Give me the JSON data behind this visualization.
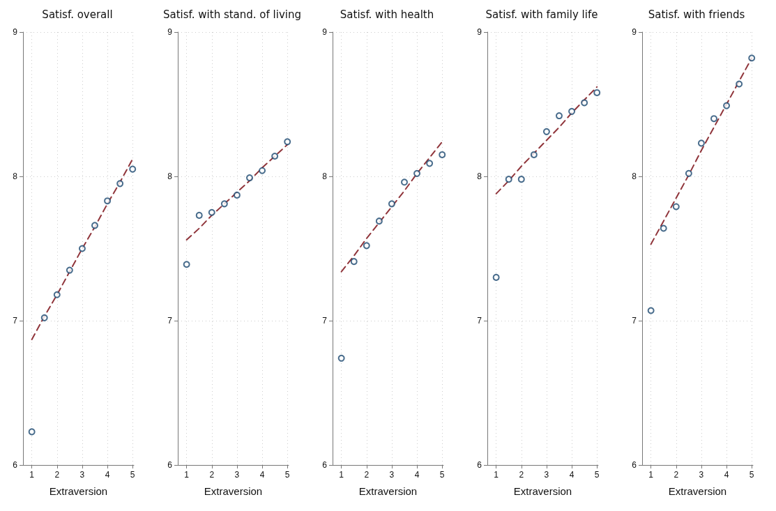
{
  "chart_data": [
    {
      "type": "scatter",
      "title": "Satisf. overall",
      "xlabel": "Extraversion",
      "x": [
        1,
        1.5,
        2,
        2.5,
        3,
        3.5,
        4,
        4.5,
        5
      ],
      "xlim": [
        0.65,
        5.05
      ],
      "xticks": [
        1,
        2,
        3,
        4,
        5
      ],
      "ylim": [
        6,
        9
      ],
      "yticks": [
        6,
        7,
        8,
        9
      ],
      "grid": true,
      "series": [
        {
          "color": "#1a476f",
          "marker": "circle",
          "values": [
            6.23,
            7.02,
            7.18,
            7.35,
            7.5,
            7.66,
            7.83,
            7.95,
            8.05
          ]
        },
        {
          "type": "line",
          "color": "#90353b",
          "line_style": "dashed",
          "marker": "none",
          "values": [
            6.87,
            7.03,
            7.18,
            7.34,
            7.5,
            7.65,
            7.81,
            7.96,
            8.12
          ]
        }
      ]
    },
    {
      "type": "scatter",
      "title": "Satisf. with stand. of living",
      "xlabel": "Extraversion",
      "x": [
        1,
        1.5,
        2,
        2.5,
        3,
        3.5,
        4,
        4.5,
        5
      ],
      "xlim": [
        0.65,
        5.05
      ],
      "xticks": [
        1,
        2,
        3,
        4,
        5
      ],
      "ylim": [
        6,
        9
      ],
      "yticks": [
        6,
        7,
        8,
        9
      ],
      "grid": true,
      "series": [
        {
          "color": "#1a476f",
          "marker": "circle",
          "values": [
            7.39,
            7.73,
            7.75,
            7.81,
            7.87,
            7.99,
            8.04,
            8.14,
            8.24
          ]
        },
        {
          "type": "line",
          "color": "#90353b",
          "line_style": "dashed",
          "marker": "none",
          "values": [
            7.56,
            7.64,
            7.73,
            7.81,
            7.89,
            7.97,
            8.06,
            8.14,
            8.22
          ]
        }
      ]
    },
    {
      "type": "scatter",
      "title": "Satisf. with health",
      "xlabel": "Extraversion",
      "x": [
        1,
        1.5,
        2,
        2.5,
        3,
        3.5,
        4,
        4.5,
        5
      ],
      "xlim": [
        0.65,
        5.05
      ],
      "xticks": [
        1,
        2,
        3,
        4,
        5
      ],
      "ylim": [
        6,
        9
      ],
      "yticks": [
        6,
        7,
        8,
        9
      ],
      "grid": true,
      "series": [
        {
          "color": "#1a476f",
          "marker": "circle",
          "values": [
            6.74,
            7.41,
            7.52,
            7.69,
            7.81,
            7.96,
            8.02,
            8.09,
            8.15
          ]
        },
        {
          "type": "line",
          "color": "#90353b",
          "line_style": "dashed",
          "marker": "none",
          "values": [
            7.34,
            7.45,
            7.57,
            7.68,
            7.79,
            7.9,
            8.02,
            8.13,
            8.24
          ]
        }
      ]
    },
    {
      "type": "scatter",
      "title": "Satisf. with family life",
      "xlabel": "Extraversion",
      "x": [
        1,
        1.5,
        2,
        2.5,
        3,
        3.5,
        4,
        4.5,
        5
      ],
      "xlim": [
        0.65,
        5.05
      ],
      "xticks": [
        1,
        2,
        3,
        4,
        5
      ],
      "ylim": [
        6,
        9
      ],
      "yticks": [
        6,
        7,
        8,
        9
      ],
      "grid": true,
      "series": [
        {
          "color": "#1a476f",
          "marker": "circle",
          "values": [
            7.3,
            7.98,
            7.98,
            8.15,
            8.31,
            8.42,
            8.45,
            8.51,
            8.58
          ]
        },
        {
          "type": "line",
          "color": "#90353b",
          "line_style": "dashed",
          "marker": "none",
          "values": [
            7.88,
            7.97,
            8.07,
            8.16,
            8.25,
            8.34,
            8.44,
            8.53,
            8.62
          ]
        }
      ]
    },
    {
      "type": "scatter",
      "title": "Satisf. with friends",
      "xlabel": "Extraversion",
      "x": [
        1,
        1.5,
        2,
        2.5,
        3,
        3.5,
        4,
        4.5,
        5
      ],
      "xlim": [
        0.65,
        5.05
      ],
      "xticks": [
        1,
        2,
        3,
        4,
        5
      ],
      "ylim": [
        6,
        9
      ],
      "yticks": [
        6,
        7,
        8,
        9
      ],
      "grid": true,
      "series": [
        {
          "color": "#1a476f",
          "marker": "circle",
          "values": [
            7.07,
            7.64,
            7.79,
            8.02,
            8.23,
            8.4,
            8.49,
            8.64,
            8.82
          ]
        },
        {
          "type": "line",
          "color": "#90353b",
          "line_style": "dashed",
          "marker": "none",
          "values": [
            7.53,
            7.69,
            7.85,
            8.01,
            8.18,
            8.34,
            8.5,
            8.66,
            8.82
          ]
        }
      ]
    }
  ]
}
